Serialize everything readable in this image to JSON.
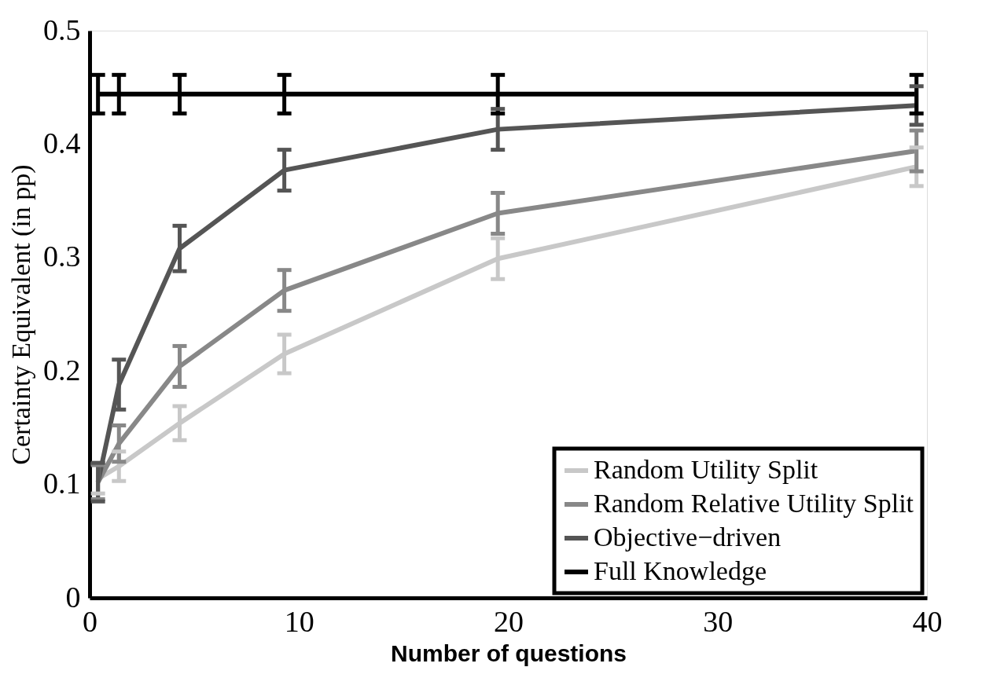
{
  "chart_data": {
    "type": "line",
    "xlabel": "Number of questions",
    "ylabel": "Certainty Equivalent (in pp)",
    "x": [
      0.4,
      1.4,
      4.3,
      9.3,
      19.5,
      39.5
    ],
    "series": [
      {
        "name": "Random Utility Split",
        "color": "#c8c8c8",
        "values": [
          0.105,
          0.116,
          0.154,
          0.215,
          0.299,
          0.38
        ],
        "errors": [
          0.013,
          0.013,
          0.015,
          0.017,
          0.018,
          0.017
        ]
      },
      {
        "name": "Random Relative Utility Split",
        "color": "#888888",
        "values": [
          0.102,
          0.136,
          0.204,
          0.271,
          0.339,
          0.394
        ],
        "errors": [
          0.015,
          0.016,
          0.018,
          0.018,
          0.018,
          0.018
        ]
      },
      {
        "name": "Objective−driven",
        "color": "#555555",
        "values": [
          0.102,
          0.188,
          0.308,
          0.377,
          0.413,
          0.434
        ],
        "errors": [
          0.017,
          0.022,
          0.02,
          0.018,
          0.018,
          0.017
        ]
      },
      {
        "name": "Full Knowledge",
        "color": "#000000",
        "values": [
          0.444,
          0.444,
          0.444,
          0.444,
          0.444,
          0.444
        ],
        "errors": [
          0.017,
          0.017,
          0.017,
          0.017,
          0.017,
          0.017
        ]
      }
    ],
    "xlim": [
      0,
      40
    ],
    "xticks": [
      0,
      10,
      20,
      30,
      40
    ],
    "ylim": [
      0,
      0.5
    ],
    "yticks": [
      0,
      0.1,
      0.2,
      0.3,
      0.4,
      0.5
    ],
    "grid": false,
    "legend": "bottom right",
    "marker": "none",
    "line_style": "solid"
  }
}
